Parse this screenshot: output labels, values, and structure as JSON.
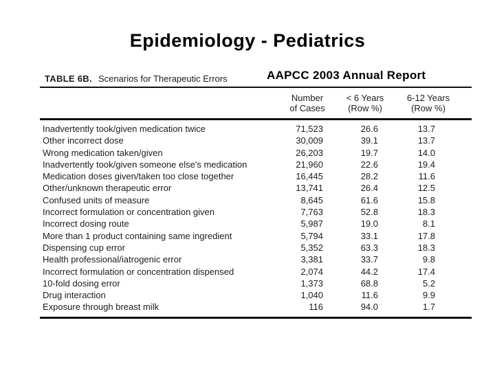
{
  "slide": {
    "title": "Epidemiology - Pediatrics",
    "source_label": "AAPCC 2003 Annual Report"
  },
  "table": {
    "label": "TABLE 6B.",
    "caption": "Scenarios for Therapeutic Errors",
    "columns": [
      {
        "line1": "Number",
        "line2": "of Cases"
      },
      {
        "line1": "< 6 Years",
        "line2": "(Row %)"
      },
      {
        "line1": "6-12 Years",
        "line2": "(Row %)"
      }
    ],
    "rows": [
      {
        "scenario": "Inadvertently took/given medication twice",
        "cases": "71,523",
        "under6_pct": "26.6",
        "six_to_12_pct": "13.7"
      },
      {
        "scenario": "Other incorrect dose",
        "cases": "30,009",
        "under6_pct": "39.1",
        "six_to_12_pct": "13.7"
      },
      {
        "scenario": "Wrong medication taken/given",
        "cases": "26,203",
        "under6_pct": "19.7",
        "six_to_12_pct": "14.0"
      },
      {
        "scenario": "Inadvertently took/given someone else's medication",
        "cases": "21,960",
        "under6_pct": "22.6",
        "six_to_12_pct": "19.4"
      },
      {
        "scenario": "Medication doses given/taken too close together",
        "cases": "16,445",
        "under6_pct": "28.2",
        "six_to_12_pct": "11.6"
      },
      {
        "scenario": "Other/unknown therapeutic error",
        "cases": "13,741",
        "under6_pct": "26.4",
        "six_to_12_pct": "12.5"
      },
      {
        "scenario": "Confused units of measure",
        "cases": "8,645",
        "under6_pct": "61.6",
        "six_to_12_pct": "15.8"
      },
      {
        "scenario": "Incorrect formulation or concentration given",
        "cases": "7,763",
        "under6_pct": "52.8",
        "six_to_12_pct": "18.3"
      },
      {
        "scenario": "Incorrect dosing route",
        "cases": "5,987",
        "under6_pct": "19.0",
        "six_to_12_pct": "8.1"
      },
      {
        "scenario": "More than 1 product containing same ingredient",
        "cases": "5,794",
        "under6_pct": "33.1",
        "six_to_12_pct": "17.8"
      },
      {
        "scenario": "Dispensing cup error",
        "cases": "5,352",
        "under6_pct": "63.3",
        "six_to_12_pct": "18.3"
      },
      {
        "scenario": "Health professional/iatrogenic error",
        "cases": "3,381",
        "under6_pct": "33.7",
        "six_to_12_pct": "9.8"
      },
      {
        "scenario": "Incorrect formulation or concentration dispensed",
        "cases": "2,074",
        "under6_pct": "44.2",
        "six_to_12_pct": "17.4"
      },
      {
        "scenario": "10-fold dosing error",
        "cases": "1,373",
        "under6_pct": "68.8",
        "six_to_12_pct": "5.2"
      },
      {
        "scenario": "Drug interaction",
        "cases": "1,040",
        "under6_pct": "11.6",
        "six_to_12_pct": "9.9"
      },
      {
        "scenario": "Exposure through breast milk",
        "cases": "116",
        "under6_pct": "94.0",
        "six_to_12_pct": "1.7"
      }
    ]
  }
}
